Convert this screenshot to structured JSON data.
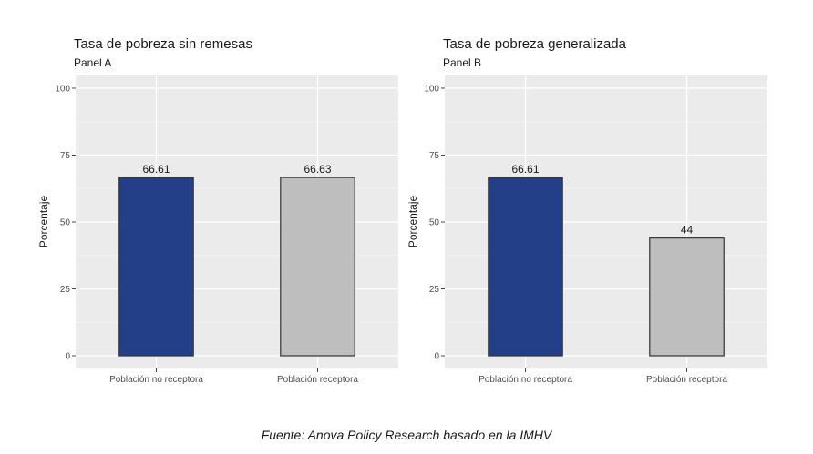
{
  "chart_data": [
    {
      "type": "bar",
      "title": "Tasa de pobreza sin remesas",
      "subtitle": "Panel A",
      "ylabel": "Porcentaje",
      "xlabel": "",
      "ylim": [
        0,
        100
      ],
      "yticks": [
        0,
        25,
        50,
        75,
        100
      ],
      "grid": true,
      "categories": [
        "Población no receptora",
        "Población receptora"
      ],
      "values": [
        66.61,
        66.63
      ],
      "value_labels": [
        "66.61",
        "66.63"
      ],
      "colors": [
        "#233f87",
        "#bebebe"
      ]
    },
    {
      "type": "bar",
      "title": "Tasa de pobreza generalizada",
      "subtitle": "Panel B",
      "ylabel": "Porcentaje",
      "xlabel": "",
      "ylim": [
        0,
        100
      ],
      "yticks": [
        0,
        25,
        50,
        75,
        100
      ],
      "grid": true,
      "categories": [
        "Población no receptora",
        "Población receptora"
      ],
      "values": [
        66.61,
        44
      ],
      "value_labels": [
        "66.61",
        "44"
      ],
      "colors": [
        "#233f87",
        "#bebebe"
      ]
    }
  ],
  "source": "Fuente: Anova Policy Research basado en la IMHV"
}
